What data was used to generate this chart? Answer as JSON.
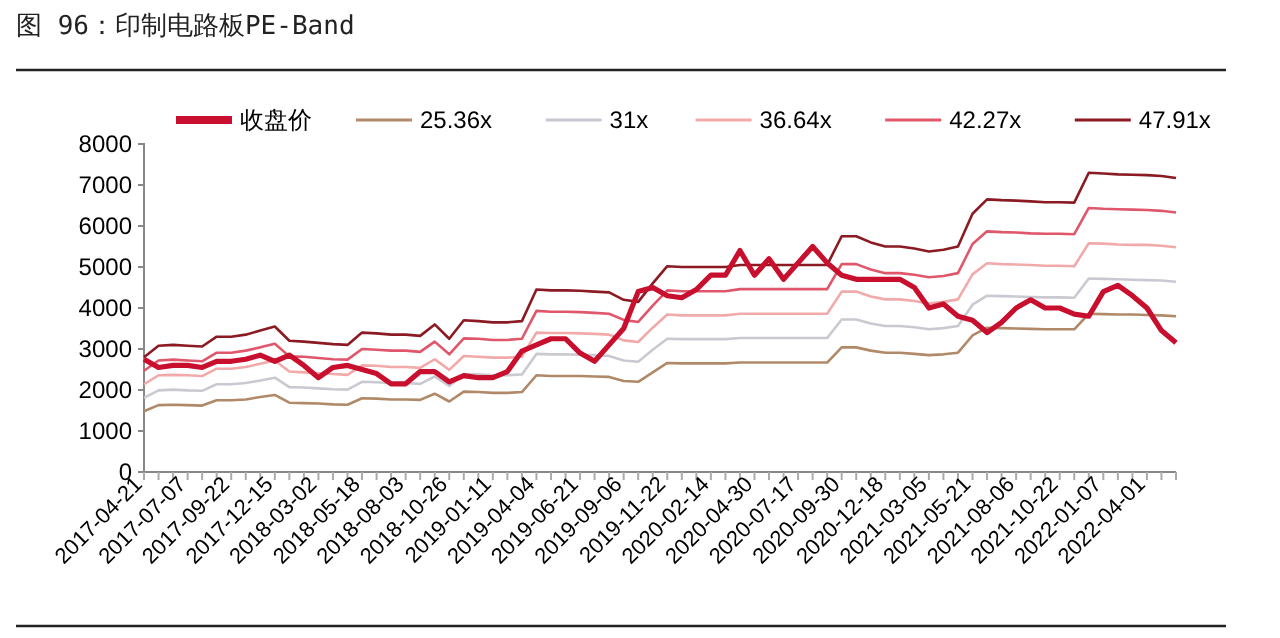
{
  "chart_data": {
    "type": "line",
    "title": "图 96：印制电路板PE-Band",
    "categories": [
      "2017-04-21",
      null,
      null,
      "2017-07-07",
      null,
      null,
      "2017-09-22",
      null,
      null,
      "2017-12-15",
      null,
      null,
      "2018-03-02",
      null,
      null,
      "2018-05-18",
      null,
      null,
      "2018-08-03",
      null,
      null,
      "2018-10-26",
      null,
      null,
      "2019-01-11",
      null,
      null,
      "2019-04-04",
      null,
      null,
      "2019-06-21",
      null,
      null,
      "2019-09-06",
      null,
      null,
      "2019-11-22",
      null,
      null,
      "2020-02-14",
      null,
      null,
      "2020-04-30",
      null,
      null,
      "2020-07-17",
      null,
      null,
      "2020-09-30",
      null,
      null,
      "2020-12-18",
      null,
      null,
      "2021-03-05",
      null,
      null,
      "2021-05-21",
      null,
      null,
      "2021-08-06",
      null,
      null,
      "2021-10-22",
      null,
      null,
      "2022-01-07",
      null,
      null,
      "2022-04-01",
      null,
      null
    ],
    "ylim": [
      0,
      8000
    ],
    "yticks": [
      0,
      1000,
      2000,
      3000,
      4000,
      5000,
      6000,
      7000,
      8000
    ],
    "grid": false,
    "legend": "top",
    "marker": "none",
    "line_style": "solid",
    "series": [
      {
        "name": "收盘价",
        "color": "#c8102e",
        "values": [
          2750,
          2550,
          2600,
          2600,
          2550,
          2700,
          2700,
          2750,
          2850,
          2700,
          2850,
          2600,
          2300,
          2550,
          2600,
          2500,
          2400,
          2150,
          2150,
          2450,
          2450,
          2200,
          2350,
          2300,
          2300,
          2450,
          2950,
          3100,
          3250,
          3250,
          2900,
          2700,
          3100,
          3500,
          4400,
          4500,
          4300,
          4250,
          4450,
          4800,
          4800,
          5400,
          4800,
          5200,
          4700,
          5100,
          5500,
          5100,
          4800,
          4700,
          4700,
          4700,
          4700,
          4500,
          4000,
          4100,
          3800,
          3700,
          3400,
          3650,
          4000,
          4200,
          4000,
          4000,
          3850,
          3800,
          4400,
          4550,
          4300,
          4000,
          3450,
          3150
        ]
      },
      {
        "name": "25.36x",
        "color": "#b08968",
        "values": [
          1480,
          1630,
          1640,
          1630,
          1620,
          1750,
          1750,
          1770,
          1830,
          1880,
          1690,
          1680,
          1670,
          1650,
          1640,
          1800,
          1790,
          1770,
          1770,
          1760,
          1910,
          1720,
          1960,
          1950,
          1930,
          1930,
          1950,
          2360,
          2340,
          2340,
          2340,
          2330,
          2320,
          2220,
          2200,
          2430,
          2660,
          2650,
          2650,
          2650,
          2650,
          2670,
          2670,
          2670,
          2670,
          2670,
          2670,
          2670,
          3040,
          3040,
          2960,
          2910,
          2910,
          2880,
          2850,
          2870,
          2910,
          3330,
          3520,
          3510,
          3500,
          3490,
          3480,
          3480,
          3480,
          3860,
          3850,
          3840,
          3840,
          3830,
          3820,
          3800
        ]
      },
      {
        "name": "31x",
        "color": "#c9c9d2",
        "values": [
          1810,
          1990,
          2010,
          1990,
          1980,
          2140,
          2140,
          2170,
          2230,
          2300,
          2070,
          2060,
          2040,
          2020,
          2010,
          2200,
          2190,
          2170,
          2170,
          2150,
          2330,
          2100,
          2390,
          2380,
          2360,
          2360,
          2380,
          2880,
          2870,
          2870,
          2860,
          2850,
          2830,
          2720,
          2690,
          2980,
          3250,
          3240,
          3240,
          3240,
          3240,
          3270,
          3270,
          3270,
          3270,
          3270,
          3270,
          3270,
          3720,
          3720,
          3620,
          3560,
          3560,
          3530,
          3480,
          3510,
          3560,
          4080,
          4300,
          4290,
          4280,
          4270,
          4260,
          4260,
          4250,
          4720,
          4710,
          4700,
          4690,
          4680,
          4670,
          4640
        ]
      },
      {
        "name": "36.64x",
        "color": "#f2a9a9",
        "values": [
          2140,
          2360,
          2370,
          2360,
          2340,
          2520,
          2520,
          2560,
          2640,
          2720,
          2450,
          2430,
          2410,
          2390,
          2370,
          2600,
          2590,
          2560,
          2560,
          2540,
          2750,
          2490,
          2830,
          2810,
          2790,
          2790,
          2810,
          3400,
          3390,
          3390,
          3380,
          3370,
          3350,
          3210,
          3170,
          3520,
          3840,
          3820,
          3820,
          3820,
          3820,
          3860,
          3860,
          3860,
          3860,
          3860,
          3860,
          3860,
          4400,
          4400,
          4280,
          4210,
          4210,
          4170,
          4110,
          4150,
          4210,
          4820,
          5090,
          5070,
          5060,
          5050,
          5030,
          5030,
          5020,
          5580,
          5570,
          5550,
          5540,
          5540,
          5520,
          5480
        ]
      },
      {
        "name": "42.27x",
        "color": "#e0566a",
        "values": [
          2470,
          2720,
          2740,
          2720,
          2700,
          2910,
          2910,
          2960,
          3040,
          3130,
          2820,
          2810,
          2780,
          2750,
          2740,
          3000,
          2980,
          2960,
          2960,
          2930,
          3180,
          2870,
          3260,
          3250,
          3220,
          3220,
          3250,
          3930,
          3910,
          3910,
          3900,
          3880,
          3860,
          3710,
          3660,
          4060,
          4430,
          4410,
          4410,
          4410,
          4410,
          4460,
          4460,
          4460,
          4460,
          4460,
          4460,
          4460,
          5070,
          5070,
          4940,
          4850,
          4850,
          4810,
          4750,
          4780,
          4850,
          5560,
          5870,
          5850,
          5840,
          5820,
          5810,
          5810,
          5800,
          6440,
          6420,
          6410,
          6400,
          6390,
          6370,
          6330
        ]
      },
      {
        "name": "47.91x",
        "color": "#8b1a22",
        "values": [
          2800,
          3080,
          3100,
          3080,
          3060,
          3300,
          3300,
          3350,
          3450,
          3550,
          3200,
          3180,
          3150,
          3120,
          3100,
          3400,
          3380,
          3350,
          3350,
          3320,
          3600,
          3250,
          3700,
          3680,
          3650,
          3650,
          3680,
          4450,
          4430,
          4430,
          4420,
          4400,
          4380,
          4200,
          4150,
          4600,
          5020,
          5000,
          5000,
          5000,
          5000,
          5050,
          5050,
          5050,
          5050,
          5050,
          5050,
          5050,
          5750,
          5750,
          5600,
          5500,
          5500,
          5450,
          5380,
          5420,
          5500,
          6300,
          6650,
          6630,
          6620,
          6600,
          6580,
          6580,
          6570,
          7300,
          7280,
          7260,
          7250,
          7240,
          7220,
          7170
        ]
      }
    ]
  }
}
